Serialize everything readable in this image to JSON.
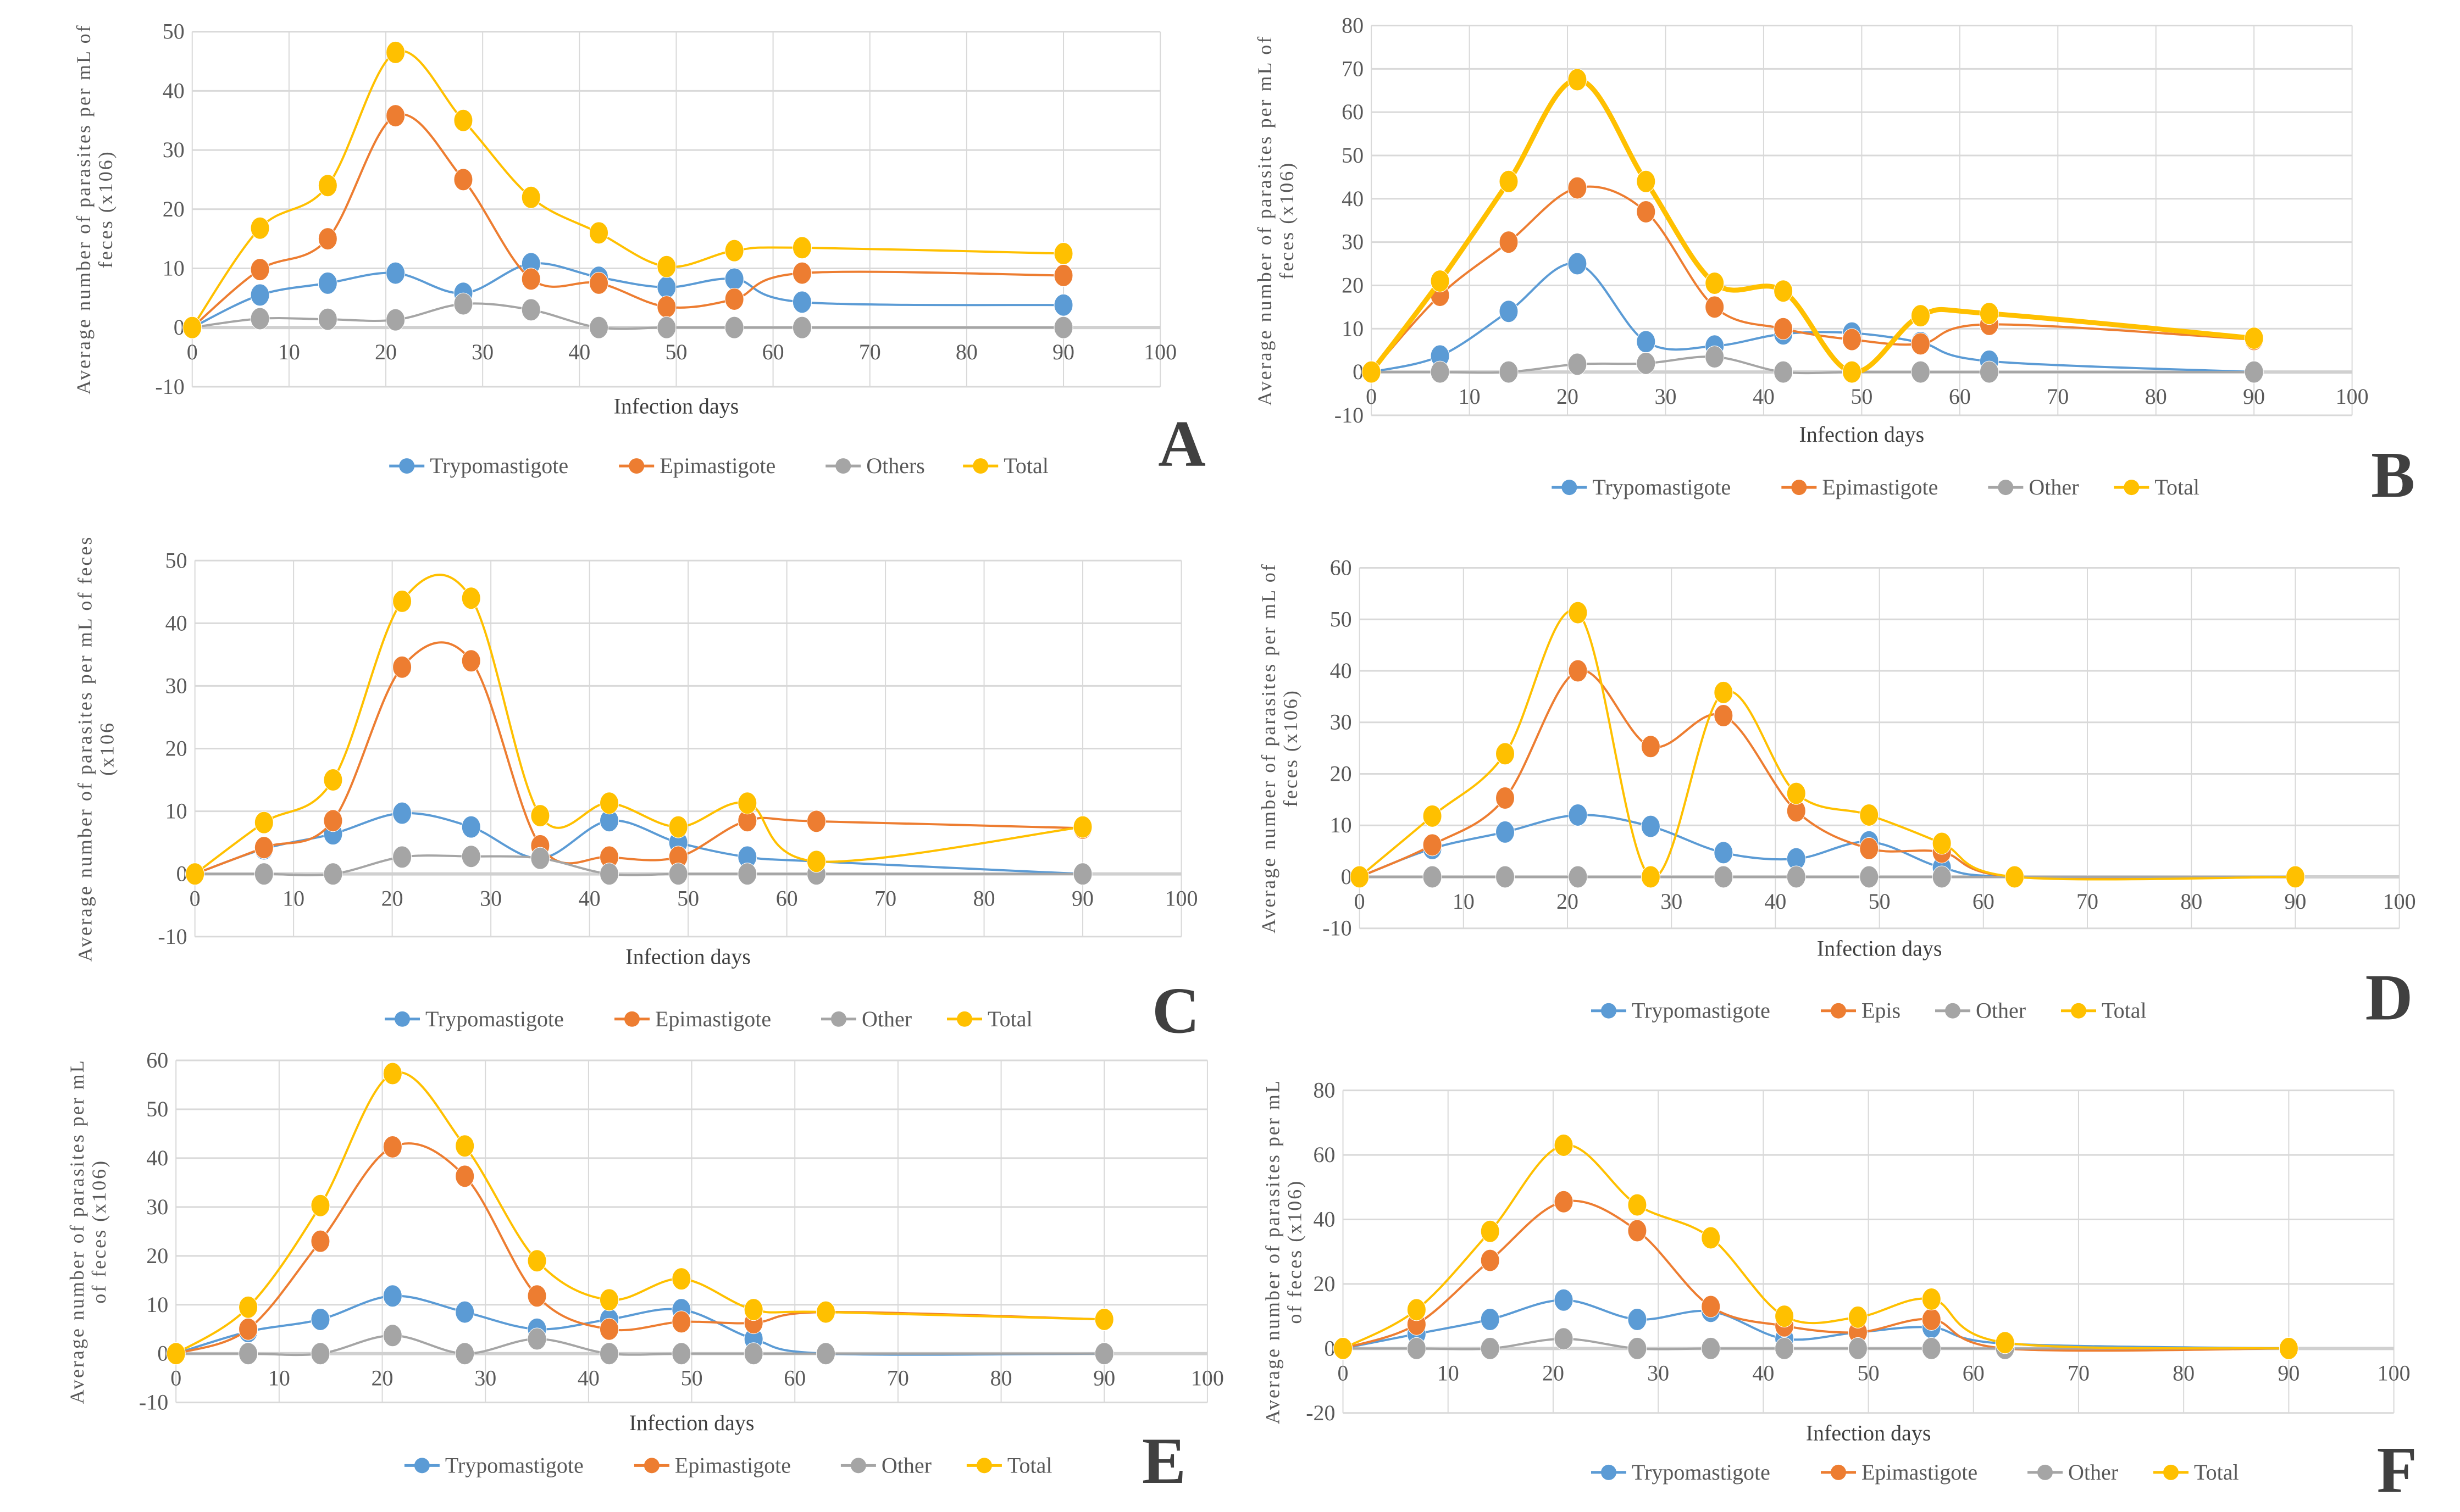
{
  "chart_data": [
    {
      "type": "line",
      "panel_letter": "A",
      "xlabel": "Infection days",
      "ylabel": [
        "Average number of parasites per mL of",
        "feces (x106)"
      ],
      "xlim": [
        0,
        100
      ],
      "xticks": [
        0,
        10,
        20,
        30,
        40,
        50,
        60,
        70,
        80,
        90,
        100
      ],
      "ylim": [
        -10,
        50
      ],
      "yticks": [
        -10,
        0,
        10,
        20,
        30,
        40,
        50
      ],
      "grid": true,
      "legend": "bottom",
      "x": [
        0,
        7,
        14,
        21,
        28,
        35,
        42,
        49,
        56,
        63,
        90
      ],
      "series": [
        {
          "name": "Trypomastigote",
          "color": "#5B9BD5",
          "values": [
            0,
            5.5,
            7.5,
            9.2,
            5.8,
            10.8,
            8.5,
            6.8,
            8.2,
            4.3,
            3.8
          ]
        },
        {
          "name": "Epimastigote",
          "color": "#ED7D31",
          "values": [
            0,
            9.8,
            15,
            35.8,
            25,
            8.2,
            7.5,
            3.5,
            4.8,
            9.2,
            8.8
          ]
        },
        {
          "name": "Others",
          "color": "#A5A5A5",
          "values": [
            0,
            1.5,
            1.4,
            1.3,
            4,
            3,
            0,
            0,
            0,
            0,
            0
          ]
        },
        {
          "name": "Total",
          "color": "#FFC000",
          "values": [
            0,
            16.8,
            24,
            46.5,
            35,
            22,
            16,
            10.3,
            13,
            13.5,
            12.5
          ]
        }
      ]
    },
    {
      "type": "line",
      "panel_letter": "B",
      "xlabel": "Infection days",
      "ylabel": [
        "Average number of parasites per mL of",
        "feces (x106)"
      ],
      "xlim": [
        0,
        100
      ],
      "xticks": [
        0,
        10,
        20,
        30,
        40,
        50,
        60,
        70,
        80,
        90,
        100
      ],
      "ylim": [
        -10,
        80
      ],
      "yticks": [
        -10,
        0,
        10,
        20,
        30,
        40,
        50,
        60,
        70,
        80
      ],
      "grid": true,
      "legend": "bottom",
      "x": [
        0,
        7,
        14,
        21,
        28,
        35,
        42,
        49,
        56,
        63,
        90
      ],
      "series": [
        {
          "name": "Trypomastigote",
          "color": "#5B9BD5",
          "values": [
            0,
            3.7,
            14,
            25,
            7,
            6,
            8.8,
            9,
            6.8,
            2.5,
            0
          ]
        },
        {
          "name": "Epimastigote",
          "color": "#ED7D31",
          "values": [
            0,
            17.7,
            30,
            42.5,
            37,
            15,
            10,
            7.5,
            6.5,
            11,
            7.5
          ]
        },
        {
          "name": "Other",
          "color": "#A5A5A5",
          "values": [
            0,
            0,
            0,
            1.8,
            2,
            3.5,
            0,
            0,
            0,
            0,
            0
          ]
        },
        {
          "name": "Total",
          "color": "#FFC000",
          "values": [
            0,
            21,
            44,
            67.5,
            44,
            20.5,
            18.7,
            0,
            13,
            13.5,
            7.8
          ]
        }
      ]
    },
    {
      "type": "line",
      "panel_letter": "C",
      "xlabel": "Infection days",
      "ylabel": [
        "Average number of parasites per mL of feces",
        "(x106"
      ],
      "xlim": [
        0,
        100
      ],
      "xticks": [
        0,
        10,
        20,
        30,
        40,
        50,
        60,
        70,
        80,
        90,
        100
      ],
      "ylim": [
        -10,
        50
      ],
      "yticks": [
        -10,
        0,
        10,
        20,
        30,
        40,
        50
      ],
      "grid": true,
      "legend": "bottom",
      "x": [
        0,
        7,
        14,
        21,
        28,
        35,
        42,
        49,
        56,
        63,
        90
      ],
      "series": [
        {
          "name": "Trypomastigote",
          "color": "#5B9BD5",
          "values": [
            0,
            4,
            6.4,
            9.7,
            7.5,
            2.5,
            8.5,
            5,
            2.7,
            2,
            0
          ]
        },
        {
          "name": "Epimastigote",
          "color": "#ED7D31",
          "values": [
            0,
            4.2,
            8.5,
            33,
            34,
            4.5,
            2.7,
            2.7,
            8.5,
            8.4,
            7.3
          ]
        },
        {
          "name": "Other",
          "color": "#A5A5A5",
          "values": [
            0,
            0,
            0,
            2.7,
            2.8,
            2.5,
            0,
            0,
            0,
            0,
            0
          ]
        },
        {
          "name": "Total",
          "color": "#FFC000",
          "values": [
            0,
            8.2,
            15,
            43.5,
            44,
            9.3,
            11.3,
            7.5,
            11.3,
            2,
            7.5
          ]
        }
      ]
    },
    {
      "type": "line",
      "panel_letter": "D",
      "xlabel": "Infection days",
      "ylabel": [
        "Average number of parasites per mL of",
        "feces (x106)"
      ],
      "xlim": [
        0,
        100
      ],
      "xticks": [
        0,
        10,
        20,
        30,
        40,
        50,
        60,
        70,
        80,
        90,
        100
      ],
      "ylim": [
        -10,
        60
      ],
      "yticks": [
        -10,
        0,
        10,
        20,
        30,
        40,
        50,
        60
      ],
      "grid": true,
      "legend": "bottom",
      "x": [
        0,
        7,
        14,
        21,
        28,
        35,
        42,
        49,
        56,
        63,
        90
      ],
      "series": [
        {
          "name": "Trypomastigote",
          "color": "#5B9BD5",
          "values": [
            0,
            5.5,
            8.7,
            12,
            9.8,
            4.7,
            3.5,
            6.8,
            1.8,
            0,
            0
          ]
        },
        {
          "name": "Epis",
          "color": "#ED7D31",
          "values": [
            0,
            6.2,
            15.3,
            40,
            25.3,
            31.3,
            12.8,
            5.5,
            4.8,
            0,
            0
          ]
        },
        {
          "name": "Other",
          "color": "#A5A5A5",
          "values": [
            0,
            0,
            0,
            0,
            0,
            0,
            0,
            0,
            0,
            0,
            0
          ]
        },
        {
          "name": "Total",
          "color": "#FFC000",
          "values": [
            0,
            11.8,
            23.9,
            51.3,
            0,
            35.8,
            16.2,
            12,
            6.5,
            0,
            0
          ]
        }
      ]
    },
    {
      "type": "line",
      "panel_letter": "E",
      "xlabel": "Infection days",
      "ylabel": [
        "Average number of parasites per mL",
        "of feces (x106)"
      ],
      "xlim": [
        0,
        100
      ],
      "xticks": [
        0,
        10,
        20,
        30,
        40,
        50,
        60,
        70,
        80,
        90,
        100
      ],
      "ylim": [
        -10,
        60
      ],
      "yticks": [
        -10,
        0,
        10,
        20,
        30,
        40,
        50,
        60
      ],
      "grid": true,
      "legend": "bottom",
      "x": [
        0,
        7,
        14,
        21,
        28,
        35,
        42,
        49,
        56,
        63,
        90
      ],
      "series": [
        {
          "name": "Trypomastigote",
          "color": "#5B9BD5",
          "values": [
            0,
            4.5,
            7,
            11.8,
            8.5,
            5,
            7,
            9,
            3,
            0,
            0
          ]
        },
        {
          "name": "Epimastigote",
          "color": "#ED7D31",
          "values": [
            0,
            5,
            23,
            42.3,
            36.3,
            11.8,
            5,
            6.5,
            6.3,
            8.5,
            7
          ]
        },
        {
          "name": "Other",
          "color": "#A5A5A5",
          "values": [
            0,
            0,
            0,
            3.7,
            0,
            3,
            0,
            0,
            0,
            0,
            0
          ]
        },
        {
          "name": "Total",
          "color": "#FFC000",
          "values": [
            0,
            9.5,
            30.3,
            57.3,
            42.5,
            19,
            11,
            15.3,
            9,
            8.5,
            7
          ]
        }
      ]
    },
    {
      "type": "line",
      "panel_letter": "F",
      "xlabel": "Infection days",
      "ylabel": [
        "Average number of parasites per mL",
        "of feces (x106)"
      ],
      "xlim": [
        0,
        100
      ],
      "xticks": [
        0,
        10,
        20,
        30,
        40,
        50,
        60,
        70,
        80,
        90,
        100
      ],
      "ylim": [
        -20,
        80
      ],
      "yticks": [
        -20,
        0,
        20,
        40,
        60,
        80
      ],
      "grid": true,
      "legend": "bottom",
      "x": [
        0,
        7,
        14,
        21,
        28,
        35,
        42,
        49,
        56,
        63,
        90
      ],
      "series": [
        {
          "name": "Trypomastigote",
          "color": "#5B9BD5",
          "values": [
            0,
            4.5,
            9,
            15,
            9,
            11.5,
            3,
            5,
            6.5,
            1.5,
            0
          ]
        },
        {
          "name": "Epimastigote",
          "color": "#ED7D31",
          "values": [
            0,
            7.5,
            27.3,
            45.5,
            36.5,
            13,
            7,
            5,
            9,
            0,
            0
          ]
        },
        {
          "name": "Other",
          "color": "#A5A5A5",
          "values": [
            0,
            0,
            0,
            3,
            0,
            0,
            0,
            0,
            0,
            0,
            0
          ]
        },
        {
          "name": "Total",
          "color": "#FFC000",
          "values": [
            0,
            12,
            36.3,
            63,
            44.5,
            34.3,
            10,
            9.7,
            15.3,
            1.8,
            0
          ]
        }
      ]
    }
  ]
}
